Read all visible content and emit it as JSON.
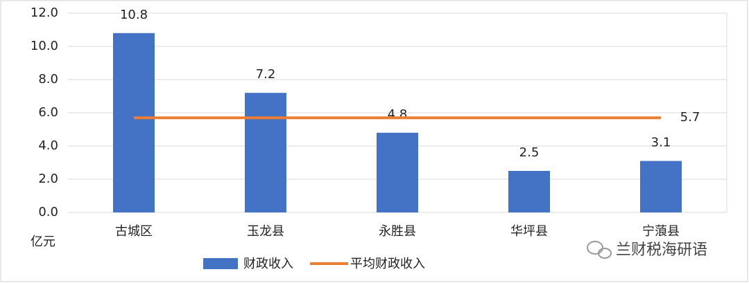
{
  "chart_data": {
    "type": "bar",
    "y_label": "亿元",
    "categories": [
      "古城区",
      "玉龙县",
      "永胜县",
      "华坪县",
      "宁蒗县"
    ],
    "series": [
      {
        "name": "财政收入",
        "type": "bar",
        "color": "#4472c4",
        "values": [
          10.8,
          7.2,
          4.8,
          2.5,
          3.1
        ]
      },
      {
        "name": "平均财政收入",
        "type": "line",
        "color": "#ed7d31",
        "values": [
          5.7,
          5.7,
          5.7,
          5.7,
          5.7
        ]
      }
    ],
    "ylim": [
      0,
      12
    ],
    "yticks": [
      {
        "value": 0,
        "label": "0.0"
      },
      {
        "value": 2,
        "label": "2.0"
      },
      {
        "value": 4,
        "label": "4.0"
      },
      {
        "value": 6,
        "label": "6.0"
      },
      {
        "value": 8,
        "label": "8.0"
      },
      {
        "value": 10,
        "label": "10.0"
      },
      {
        "value": 12,
        "label": "12.0"
      }
    ],
    "grid": true
  },
  "watermark": "兰财税海研语"
}
